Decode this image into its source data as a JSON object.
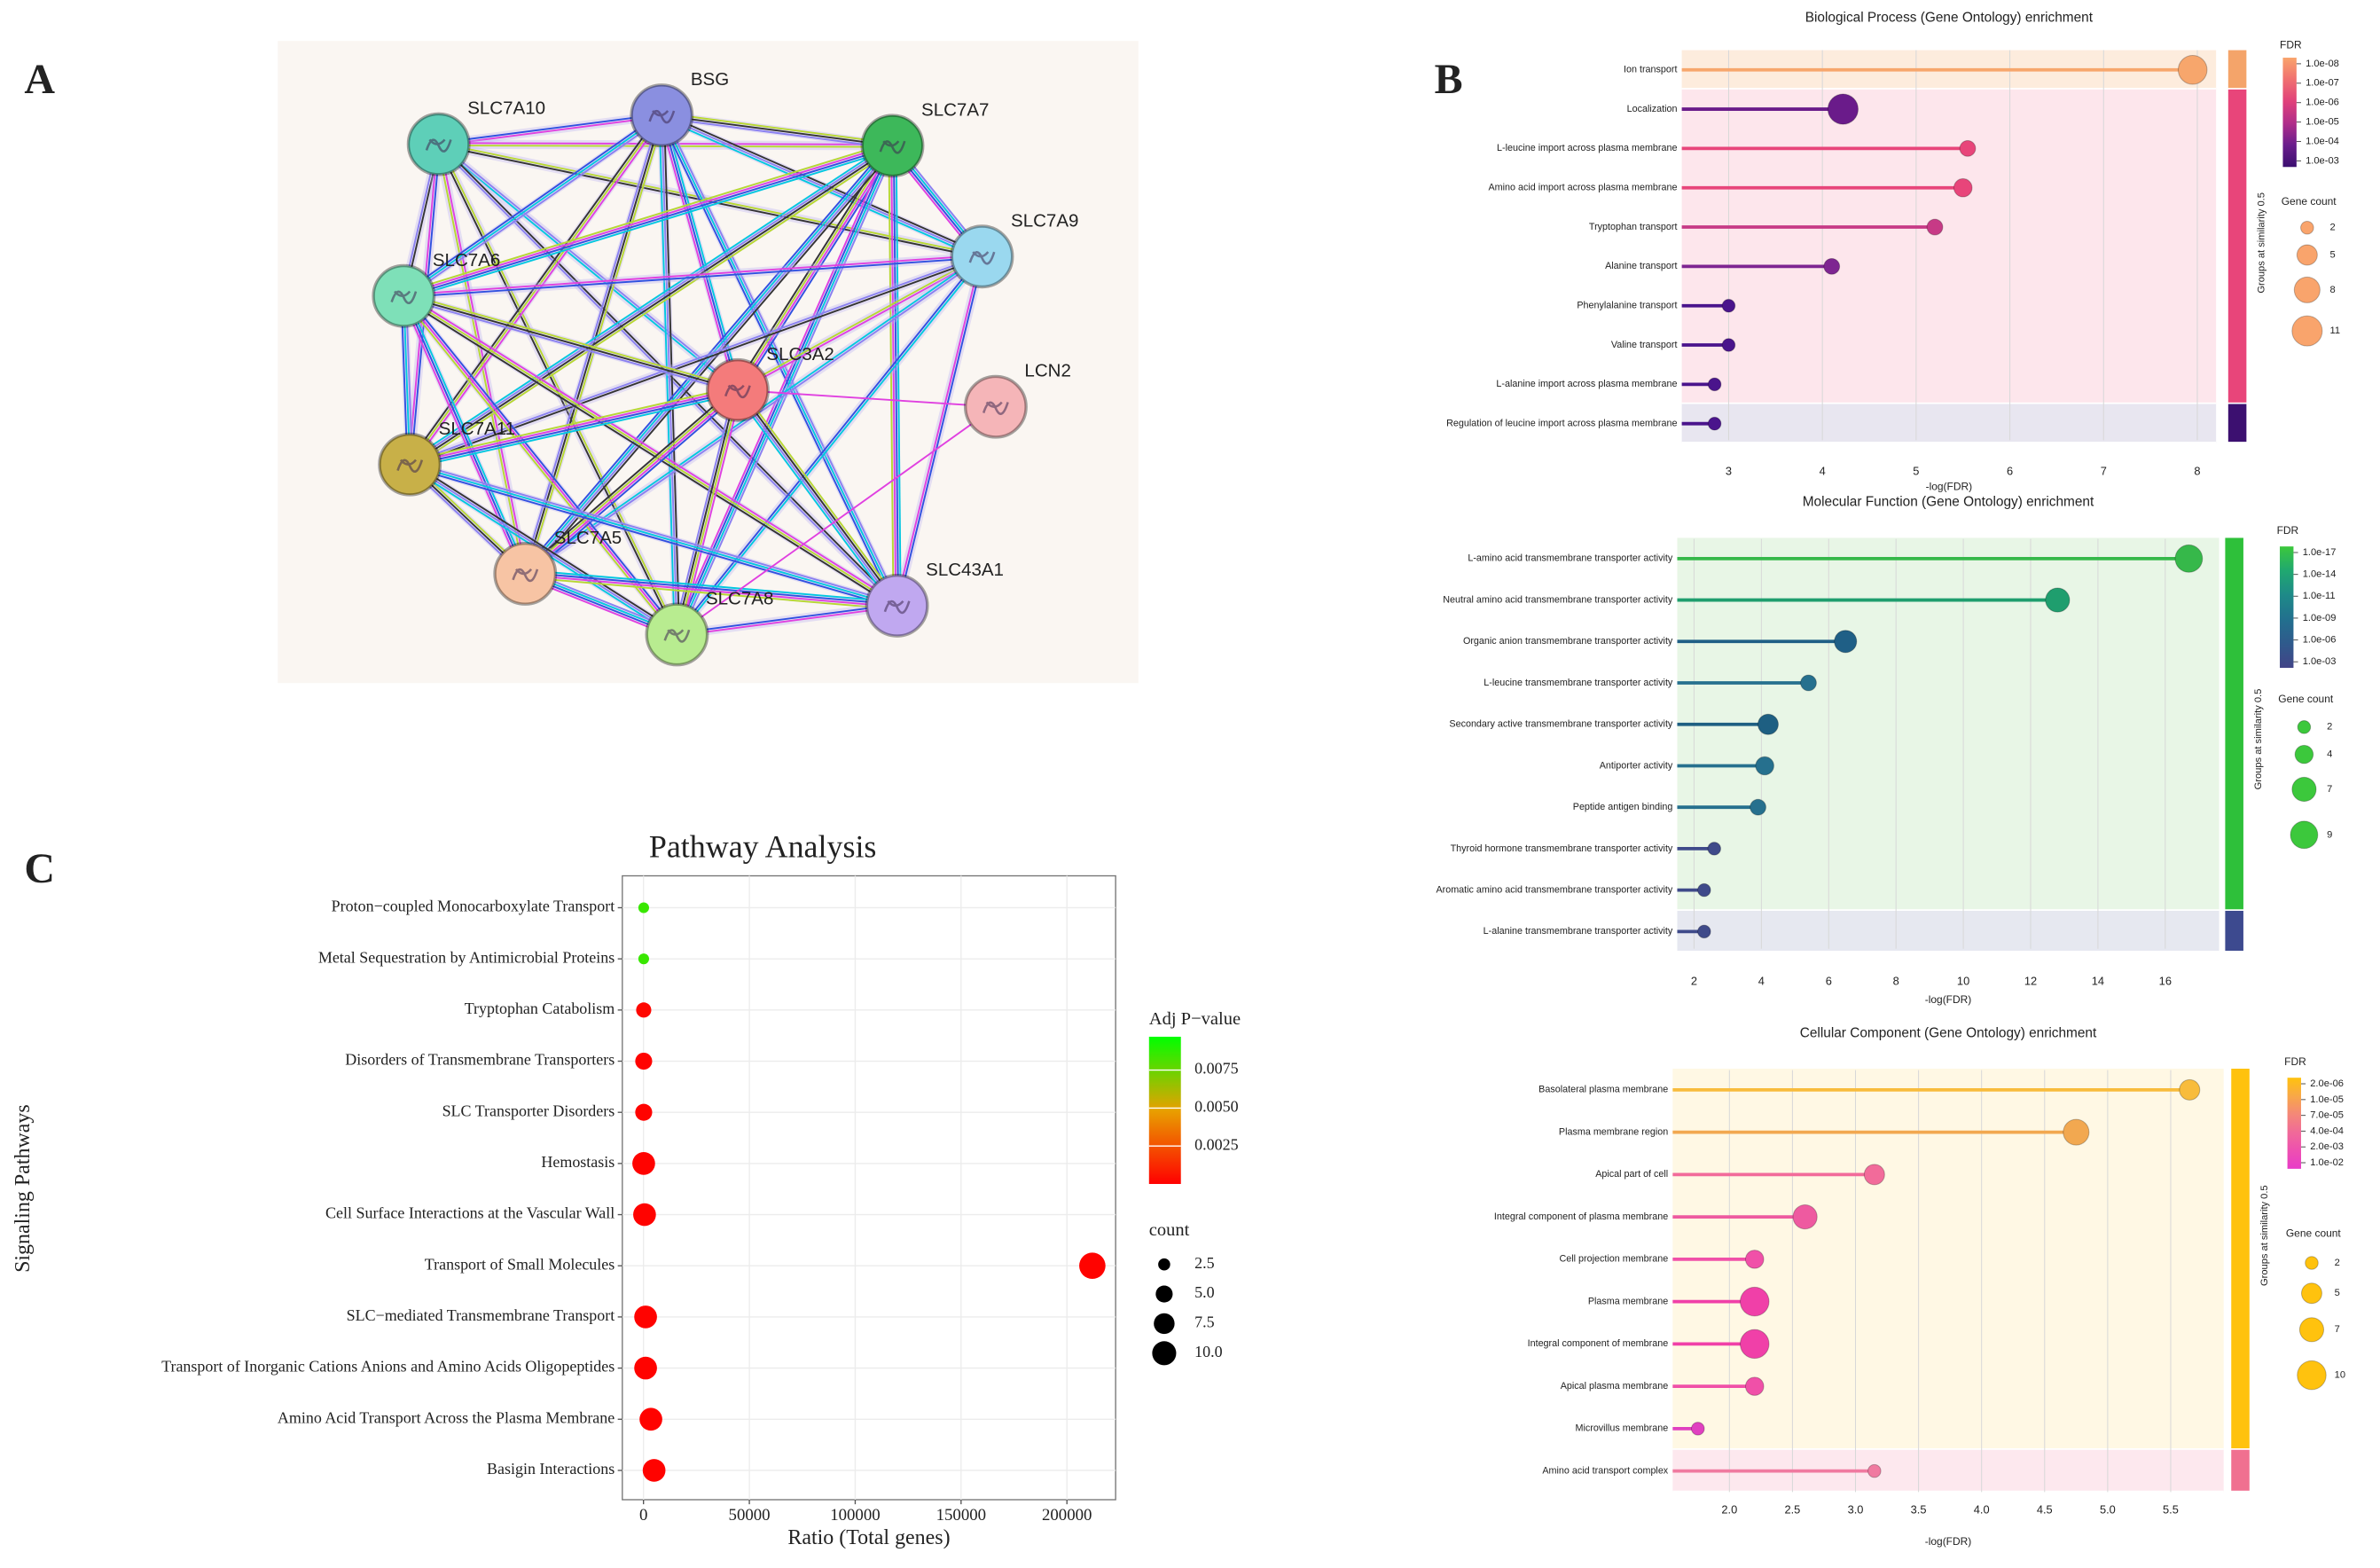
{
  "chart_data": [
    {
      "type": "network",
      "panel": "A",
      "nodes": [
        "SLC7A10",
        "BSG",
        "SLC7A7",
        "SLC7A9",
        "SLC7A6",
        "SLC3A2",
        "LCN2",
        "SLC7A11",
        "SLC7A5",
        "SLC7A8",
        "SLC43A1"
      ],
      "colors": [
        "#5ecfb8",
        "#8a8fe0",
        "#3db85a",
        "#9ad8ef",
        "#7ee0b8",
        "#f47b7b",
        "#f5b5b8",
        "#c8b048",
        "#f7c4a4",
        "#b8ec90",
        "#c0a8f0"
      ]
    },
    {
      "type": "lollipop",
      "panel": "B",
      "title": "Biological Process (Gene Ontology) enrichment",
      "categories": [
        "Ion transport",
        "Localization",
        "L-leucine import across plasma membrane",
        "Amino acid import across plasma membrane",
        "Tryptophan transport",
        "Alanine transport",
        "Phenylalanine transport",
        "Valine transport",
        "L-alanine import across plasma membrane",
        "Regulation of leucine import across plasma membrane"
      ],
      "values": [
        7.95,
        4.22,
        5.55,
        5.5,
        5.2,
        4.1,
        3.0,
        3.0,
        2.85,
        2.85
      ],
      "sizes": [
        10,
        11,
        3,
        4,
        3,
        3,
        2,
        2,
        2,
        2
      ],
      "colors": [
        "#f7a66c",
        "#6a1b8a",
        "#e8457a",
        "#e8457a",
        "#c73a86",
        "#7e2591",
        "#4a148c",
        "#4a148c",
        "#4a148c",
        "#4a148c"
      ],
      "xlim": [
        2.5,
        8.2
      ],
      "xticks": [
        3,
        4,
        5,
        6,
        7,
        8
      ],
      "xlabel": "-log(FDR)",
      "legend_title": "FDR",
      "color_ticks": [
        {
          "value": 1e-08,
          "label": "1.0e-08"
        },
        {
          "value": 1e-07,
          "label": "1.0e-07"
        },
        {
          "value": 1e-06,
          "label": "1.0e-06"
        },
        {
          "value": 1e-05,
          "label": "1.0e-05"
        },
        {
          "value": 0.0001,
          "label": "1.0e-04"
        },
        {
          "value": 0.001,
          "label": "1.0e-03"
        }
      ],
      "colorscale": [
        "#f9a46c",
        "#f07070",
        "#e0407a",
        "#b02d8a",
        "#6a1d8c",
        "#3b0f70"
      ],
      "size_title": "Gene count",
      "size_ticks": [
        2,
        5,
        8,
        11
      ],
      "group_label": "Groups at similarity 0.5"
    },
    {
      "type": "lollipop",
      "title": "Molecular Function (Gene Ontology) enrichment",
      "categories": [
        "L-amino acid transmembrane transporter activity",
        "Neutral amino acid transmembrane transporter activity",
        "Organic anion transmembrane transporter activity",
        "L-leucine transmembrane transporter activity",
        "Secondary active transmembrane transporter activity",
        "Antiporter activity",
        "Peptide antigen binding",
        "Thyroid hormone transmembrane transporter activity",
        "Aromatic amino acid transmembrane transporter activity",
        "L-alanine transmembrane transporter activity"
      ],
      "values": [
        16.7,
        12.8,
        6.5,
        5.4,
        4.2,
        4.1,
        3.9,
        2.6,
        2.3,
        2.3
      ],
      "sizes": [
        9,
        7,
        6,
        3,
        5,
        4,
        3,
        2,
        2,
        2
      ],
      "colors": [
        "#36b84a",
        "#1f9e6e",
        "#1f5f86",
        "#26708e",
        "#1e5f82",
        "#26708e",
        "#26708e",
        "#3f4a8a",
        "#3f4a8a",
        "#3f4a8a"
      ],
      "xlim": [
        1.5,
        17.6
      ],
      "xticks": [
        2,
        4,
        6,
        8,
        10,
        12,
        14,
        16
      ],
      "xlabel": "-log(FDR)",
      "legend_title": "FDR",
      "color_ticks": [
        {
          "value": 1e-17,
          "label": "1.0e-17"
        },
        {
          "value": 1e-14,
          "label": "1.0e-14"
        },
        {
          "value": 1e-11,
          "label": "1.0e-11"
        },
        {
          "value": 1e-09,
          "label": "1.0e-09"
        },
        {
          "value": 1e-06,
          "label": "1.0e-06"
        },
        {
          "value": 0.001,
          "label": "1.0e-03"
        }
      ],
      "colorscale": [
        "#3cc83c",
        "#20a870",
        "#1e8a88",
        "#22708e",
        "#2f5a8c",
        "#414487"
      ],
      "size_title": "Gene count",
      "size_ticks": [
        2,
        4,
        7,
        9
      ],
      "group_label": "Groups at similarity 0.5"
    },
    {
      "type": "lollipop",
      "title": "Cellular Component (Gene Ontology) enrichment",
      "categories": [
        "Basolateral plasma membrane",
        "Plasma membrane region",
        "Apical part of cell",
        "Integral component of plasma membrane",
        "Cell projection membrane",
        "Plasma membrane",
        "Integral component of membrane",
        "Apical plasma membrane",
        "Microvillus membrane",
        "Amino acid transport complex"
      ],
      "values": [
        5.65,
        4.75,
        3.15,
        2.6,
        2.2,
        2.2,
        2.2,
        2.2,
        1.75,
        3.15
      ],
      "sizes": [
        5,
        8,
        5,
        7,
        4,
        10,
        10,
        4,
        2,
        2
      ],
      "colors": [
        "#f8bc3c",
        "#f2a850",
        "#f26b9a",
        "#ee5aa0",
        "#f050a8",
        "#f040a8",
        "#f040a8",
        "#f050a8",
        "#e040c0",
        "#f07aa0"
      ],
      "xlim": [
        1.55,
        5.92
      ],
      "xticks": [
        {
          "value": 2,
          "label": "2.0"
        },
        2.5,
        {
          "value": 3,
          "label": "3.0"
        },
        3.5,
        {
          "value": 4,
          "label": "4.0"
        },
        4.5,
        {
          "value": 5,
          "label": "5.0"
        },
        5.5
      ],
      "xlabel": "-log(FDR)",
      "legend_title": "FDR",
      "color_ticks": [
        {
          "value": 2e-06,
          "label": "2.0e-06"
        },
        {
          "value": 1e-05,
          "label": "1.0e-05"
        },
        {
          "value": 7e-05,
          "label": "7.0e-05"
        },
        {
          "value": 0.0004,
          "label": "4.0e-04"
        },
        {
          "value": 0.002,
          "label": "2.0e-03"
        },
        {
          "value": 0.01,
          "label": "1.0e-02"
        }
      ],
      "colorscale": [
        "#ffc20e",
        "#f8a848",
        "#f48878",
        "#f06a98",
        "#ee50b0",
        "#e83cc8"
      ],
      "size_title": "Gene count",
      "size_ticks": [
        2,
        5,
        7,
        10
      ],
      "group_label": "Groups at similarity 0.5"
    },
    {
      "type": "dot",
      "panel": "C",
      "title": "Pathway Analysis",
      "categories": [
        "Proton−coupled Monocarboxylate Transport",
        "Metal Sequestration by Antimicrobial Proteins",
        "Tryptophan Catabolism",
        "Disorders of Transmembrane Transporters",
        "SLC Transporter Disorders",
        "Hemostasis",
        "Cell Surface Interactions at the Vascular Wall",
        "Transport of Small Molecules",
        "SLC−mediated Transmembrane Transport",
        "Transport of Inorganic Cations Anions and Amino Acids Oligopeptides",
        "Amino Acid Transport Across the Plasma Membrane",
        "Basigin Interactions"
      ],
      "values": [
        100,
        100,
        100,
        100,
        100,
        100,
        500,
        212000,
        1000,
        1000,
        3500,
        5000
      ],
      "sizes": [
        2,
        2,
        4,
        5,
        5,
        9,
        9,
        12,
        9,
        9,
        9,
        9
      ],
      "pvalues": [
        0.0085,
        0.0085,
        0.0002,
        0.0001,
        0.0001,
        0.0001,
        0.0001,
        0.0001,
        0.0001,
        0.0001,
        0.0001,
        0.0001
      ],
      "xlim": [
        -10000,
        223000
      ],
      "xticks": [
        0,
        50000,
        100000,
        150000,
        200000
      ],
      "xlabel": "Ratio (Total genes)",
      "ylabel": "Signaling Pathways",
      "grid": true,
      "color_title": "Adj P−value",
      "clim": [
        0,
        0.0097
      ],
      "colorscale": [
        "#ff0000",
        "#e8a000",
        "#00ff00"
      ],
      "color_ticks": [
        0.0025,
        {
          "value": 0.005,
          "label": "0.0050"
        },
        0.0075
      ],
      "size_title": "count",
      "size_ticks": [
        2.5,
        {
          "value": 5,
          "label": "5.0"
        },
        7.5,
        {
          "value": 10,
          "label": "10.0"
        }
      ]
    }
  ]
}
